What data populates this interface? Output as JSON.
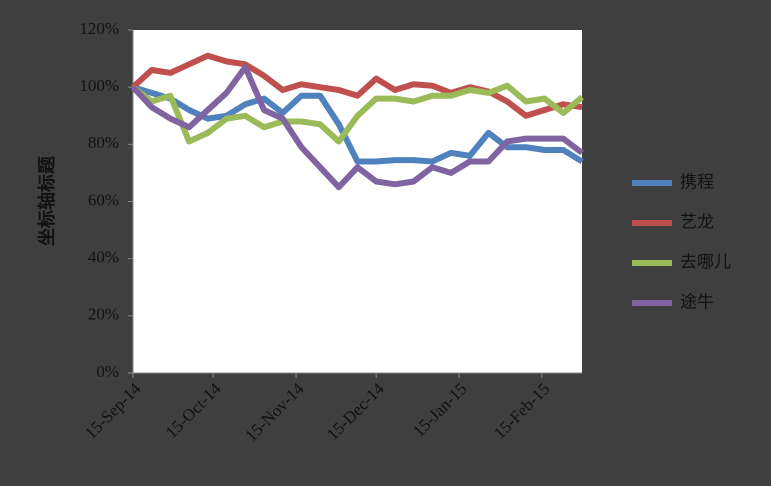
{
  "chart_data": {
    "type": "line",
    "y_label": "坐标轴标题",
    "x": [
      "2014-09-15",
      "2014-09-22",
      "2014-09-29",
      "2014-10-06",
      "2014-10-13",
      "2014-10-20",
      "2014-10-27",
      "2014-11-03",
      "2014-11-10",
      "2014-11-17",
      "2014-11-24",
      "2014-12-01",
      "2014-12-08",
      "2014-12-15",
      "2014-12-22",
      "2014-12-29",
      "2015-01-05",
      "2015-01-12",
      "2015-01-19",
      "2015-01-26",
      "2015-02-02",
      "2015-02-09",
      "2015-02-16",
      "2015-02-23",
      "2015-03-02"
    ],
    "series": [
      {
        "name": "携程",
        "color": "#4f81bd",
        "values": [
          100,
          98,
          96,
          92,
          89,
          90,
          94,
          96,
          91,
          97,
          97,
          87,
          74,
          74,
          74.5,
          74.5,
          74,
          77,
          76,
          84,
          79,
          79,
          78,
          78,
          74
        ]
      },
      {
        "name": "艺龙",
        "color": "#c0504d",
        "values": [
          100,
          106,
          105,
          108,
          111,
          109,
          108,
          104,
          99,
          101,
          100,
          99,
          97,
          103,
          99,
          101,
          100.5,
          98,
          100,
          98.5,
          95,
          90,
          92,
          94,
          93
        ]
      },
      {
        "name": "去哪儿",
        "color": "#9bbb59",
        "values": [
          100,
          95,
          97,
          81,
          84,
          89,
          90,
          86,
          88,
          88,
          87,
          81,
          90,
          96,
          96,
          95,
          97,
          97,
          99,
          98,
          100.5,
          95,
          96,
          91,
          96.5
        ]
      },
      {
        "name": "途牛",
        "color": "#8064a2",
        "values": [
          100,
          93,
          89,
          86,
          92,
          98,
          107,
          92,
          89,
          79,
          72,
          65,
          72,
          67,
          66,
          67,
          72,
          70,
          74,
          74,
          81,
          82,
          82,
          82,
          77
        ]
      }
    ],
    "xlim": [
      "2014-09-15",
      "2015-03-02"
    ],
    "xticks": [
      {
        "value": "2014-09-15",
        "label": "15-Sep-14"
      },
      {
        "value": "2014-10-15",
        "label": "15-Oct-14"
      },
      {
        "value": "2014-11-15",
        "label": "15-Nov-14"
      },
      {
        "value": "2014-12-15",
        "label": "15-Dec-14"
      },
      {
        "value": "2015-01-15",
        "label": "15-Jan-15"
      },
      {
        "value": "2015-02-15",
        "label": "15-Feb-15"
      }
    ],
    "ylim": [
      0,
      120
    ],
    "yticks": [
      {
        "value": 0,
        "label": "0%"
      },
      {
        "value": 20,
        "label": "20%"
      },
      {
        "value": 40,
        "label": "40%"
      },
      {
        "value": 60,
        "label": "60%"
      },
      {
        "value": 80,
        "label": "80%"
      },
      {
        "value": 100,
        "label": "100%"
      },
      {
        "value": 120,
        "label": "120%"
      }
    ],
    "grid": false,
    "legend": "right"
  }
}
